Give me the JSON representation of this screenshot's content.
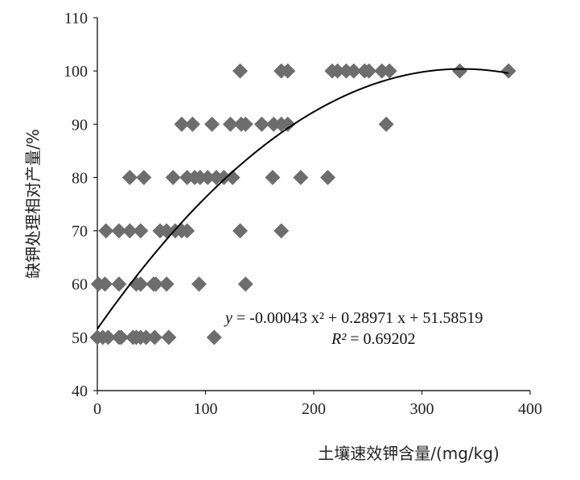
{
  "chart_data": {
    "type": "scatter",
    "title": "",
    "xlabel": "土壤速效钾含量/(mg/kg)",
    "ylabel": "缺钾处理相对产量/%",
    "xlim": [
      0,
      400
    ],
    "ylim": [
      40,
      110
    ],
    "x_ticks": [
      0,
      100,
      200,
      300,
      400
    ],
    "y_ticks": [
      40,
      50,
      60,
      70,
      80,
      90,
      100,
      110
    ],
    "grid": false,
    "legend": "none",
    "marker": "diamond",
    "marker_color": "#6d6d6d",
    "line_color": "#000000",
    "points": [
      [
        0,
        50
      ],
      [
        5,
        50
      ],
      [
        10,
        50
      ],
      [
        20,
        50
      ],
      [
        22,
        50
      ],
      [
        33,
        50
      ],
      [
        36,
        50
      ],
      [
        40,
        50
      ],
      [
        45,
        50
      ],
      [
        53,
        50
      ],
      [
        66,
        50
      ],
      [
        108,
        50
      ],
      [
        1,
        60
      ],
      [
        7,
        60
      ],
      [
        20,
        60
      ],
      [
        36,
        60
      ],
      [
        40,
        60
      ],
      [
        52,
        60
      ],
      [
        54,
        60
      ],
      [
        64,
        60
      ],
      [
        94,
        60
      ],
      [
        137,
        60
      ],
      [
        8,
        70
      ],
      [
        20,
        70
      ],
      [
        30,
        70
      ],
      [
        40,
        70
      ],
      [
        58,
        70
      ],
      [
        64,
        70
      ],
      [
        72,
        70
      ],
      [
        78,
        70
      ],
      [
        83,
        70
      ],
      [
        132,
        70
      ],
      [
        170,
        70
      ],
      [
        30,
        80
      ],
      [
        43,
        80
      ],
      [
        70,
        80
      ],
      [
        83,
        80
      ],
      [
        90,
        80
      ],
      [
        95,
        80
      ],
      [
        102,
        80
      ],
      [
        110,
        80
      ],
      [
        117,
        80
      ],
      [
        125,
        80
      ],
      [
        162,
        80
      ],
      [
        188,
        80
      ],
      [
        213,
        80
      ],
      [
        78,
        90
      ],
      [
        88,
        90
      ],
      [
        106,
        90
      ],
      [
        123,
        90
      ],
      [
        133,
        90
      ],
      [
        137,
        90
      ],
      [
        152,
        90
      ],
      [
        163,
        90
      ],
      [
        170,
        90
      ],
      [
        176,
        90
      ],
      [
        267,
        90
      ],
      [
        132,
        100
      ],
      [
        170,
        100
      ],
      [
        176,
        100
      ],
      [
        217,
        100
      ],
      [
        222,
        100
      ],
      [
        230,
        100
      ],
      [
        237,
        100
      ],
      [
        247,
        100
      ],
      [
        251,
        100
      ],
      [
        263,
        100
      ],
      [
        270,
        100
      ],
      [
        335,
        100
      ],
      [
        380,
        100
      ]
    ],
    "trendline": {
      "type": "polynomial",
      "a": -0.00043,
      "b": 0.28971,
      "c": 51.58519,
      "x_range": [
        0,
        380
      ],
      "plateau": 100.4
    },
    "annotations": {
      "equation_prefix": "y",
      "equation_body": " = -0.00043 x² + 0.28971 x + 51.58519",
      "r2_label": "R²",
      "r2_value": " = 0.69202"
    }
  }
}
